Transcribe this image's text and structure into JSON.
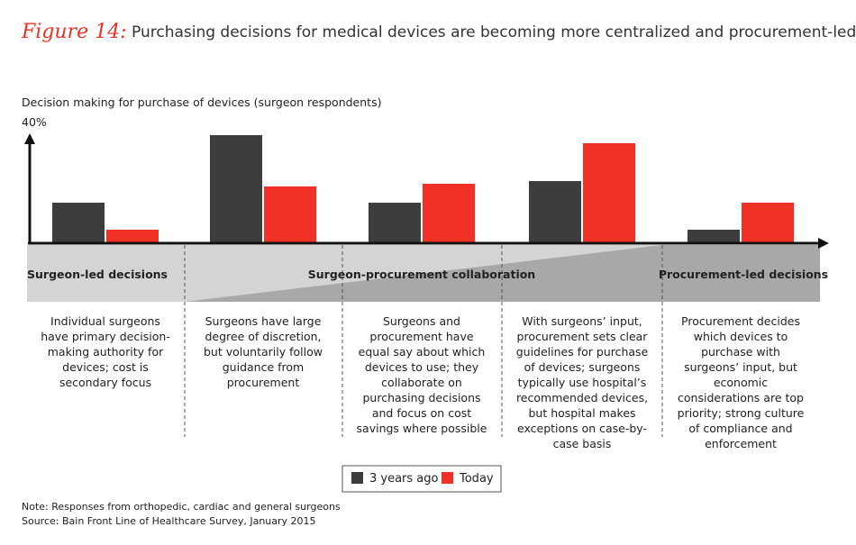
{
  "chart_data": {
    "type": "bar",
    "title_label": "Figure 14:",
    "title": "Purchasing decisions for medical devices are becoming more centralized and procurement-led",
    "subtitle": "Decision making for purchase of devices (surgeon respondents)",
    "categories": [
      "Individual surgeons have primary decision-making authority for devices; cost is secondary focus",
      "Surgeons have large degree of discretion, but voluntarily follow guidance from procurement",
      "Surgeons and procurement have equal say about which devices to use; they collaborate on purchasing decisions and focus on cost savings where possible",
      "With surgeons’ input, procurement sets clear guidelines for purchase of devices; surgeons typically use hospital’s recommended devices, but hospital makes exceptions on case-by-case basis",
      "Procurement decides which devices to purchase with surgeons’ input, but economic considerations are top priority; strong culture of compliance and enforcement"
    ],
    "series": [
      {
        "name": "3 years ago",
        "color": "#3d3d3d",
        "values": [
          15,
          40,
          15,
          23,
          5
        ]
      },
      {
        "name": "Today",
        "color": "#ee3124",
        "values": [
          5,
          21,
          22,
          37,
          15
        ]
      }
    ],
    "ylim": [
      0,
      40
    ],
    "yticks": [
      {
        "value": 40,
        "label": "40%"
      }
    ],
    "bands": [
      "Surgeon-led decisions",
      "Surgeon-procurement collaboration",
      "Procurement-led decisions"
    ],
    "notes": [
      "Note: Responses from orthopedic, cardiac and general surgeons",
      "Source: Bain Front Line of Healthcare Survey, January 2015"
    ]
  }
}
